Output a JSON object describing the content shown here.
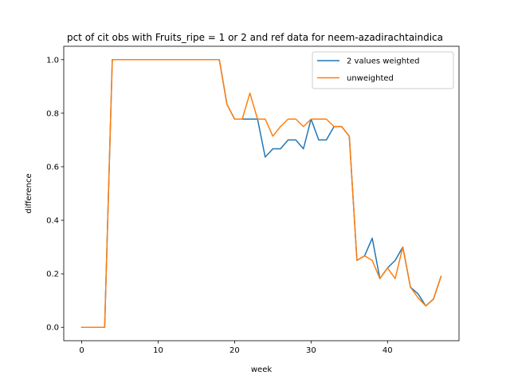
{
  "chart_data": {
    "type": "line",
    "title": "pct of cit obs with Fruits_ripe = 1 or 2 and ref data for neem-azadirachtaindica",
    "xlabel": "week",
    "ylabel": "difference",
    "xlim": [
      -2.35,
      49.35
    ],
    "ylim": [
      -0.05,
      1.05
    ],
    "xticks": [
      0,
      10,
      20,
      30,
      40
    ],
    "yticks": [
      0.0,
      0.2,
      0.4,
      0.6,
      0.8,
      1.0
    ],
    "xtick_labels": [
      "0",
      "10",
      "20",
      "30",
      "40"
    ],
    "ytick_labels": [
      "0.0",
      "0.2",
      "0.4",
      "0.6",
      "0.8",
      "1.0"
    ],
    "legend_position": "upper right",
    "x": [
      0,
      1,
      2,
      3,
      4,
      5,
      6,
      7,
      8,
      9,
      10,
      11,
      12,
      13,
      14,
      15,
      16,
      17,
      18,
      19,
      20,
      21,
      22,
      23,
      24,
      25,
      26,
      27,
      28,
      29,
      30,
      31,
      32,
      33,
      34,
      35,
      36,
      37,
      38,
      39,
      40,
      41,
      42,
      43,
      44,
      45,
      46,
      47
    ],
    "series": [
      {
        "name": "2 values weighted",
        "color": "#1f77b4",
        "values": [
          0,
          0,
          0,
          0,
          1,
          1,
          1,
          1,
          1,
          1,
          1,
          1,
          1,
          1,
          1,
          1,
          1,
          1,
          1,
          0.833,
          0.778,
          0.778,
          0.778,
          0.778,
          0.636,
          0.667,
          0.667,
          0.7,
          0.7,
          0.667,
          0.778,
          0.7,
          0.7,
          0.75,
          0.75,
          0.714,
          0.25,
          0.267,
          0.333,
          0.182,
          0.222,
          0.25,
          0.3,
          0.15,
          0.125,
          0.08,
          0.105,
          0.19
        ]
      },
      {
        "name": "unweighted",
        "color": "#ff7f0e",
        "values": [
          0,
          0,
          0,
          0,
          1,
          1,
          1,
          1,
          1,
          1,
          1,
          1,
          1,
          1,
          1,
          1,
          1,
          1,
          1,
          0.833,
          0.778,
          0.778,
          0.875,
          0.778,
          0.778,
          0.714,
          0.75,
          0.778,
          0.778,
          0.75,
          0.778,
          0.778,
          0.778,
          0.75,
          0.75,
          0.714,
          0.25,
          0.267,
          0.25,
          0.182,
          0.222,
          0.182,
          0.3,
          0.15,
          0.11,
          0.08,
          0.105,
          0.19
        ]
      }
    ]
  }
}
